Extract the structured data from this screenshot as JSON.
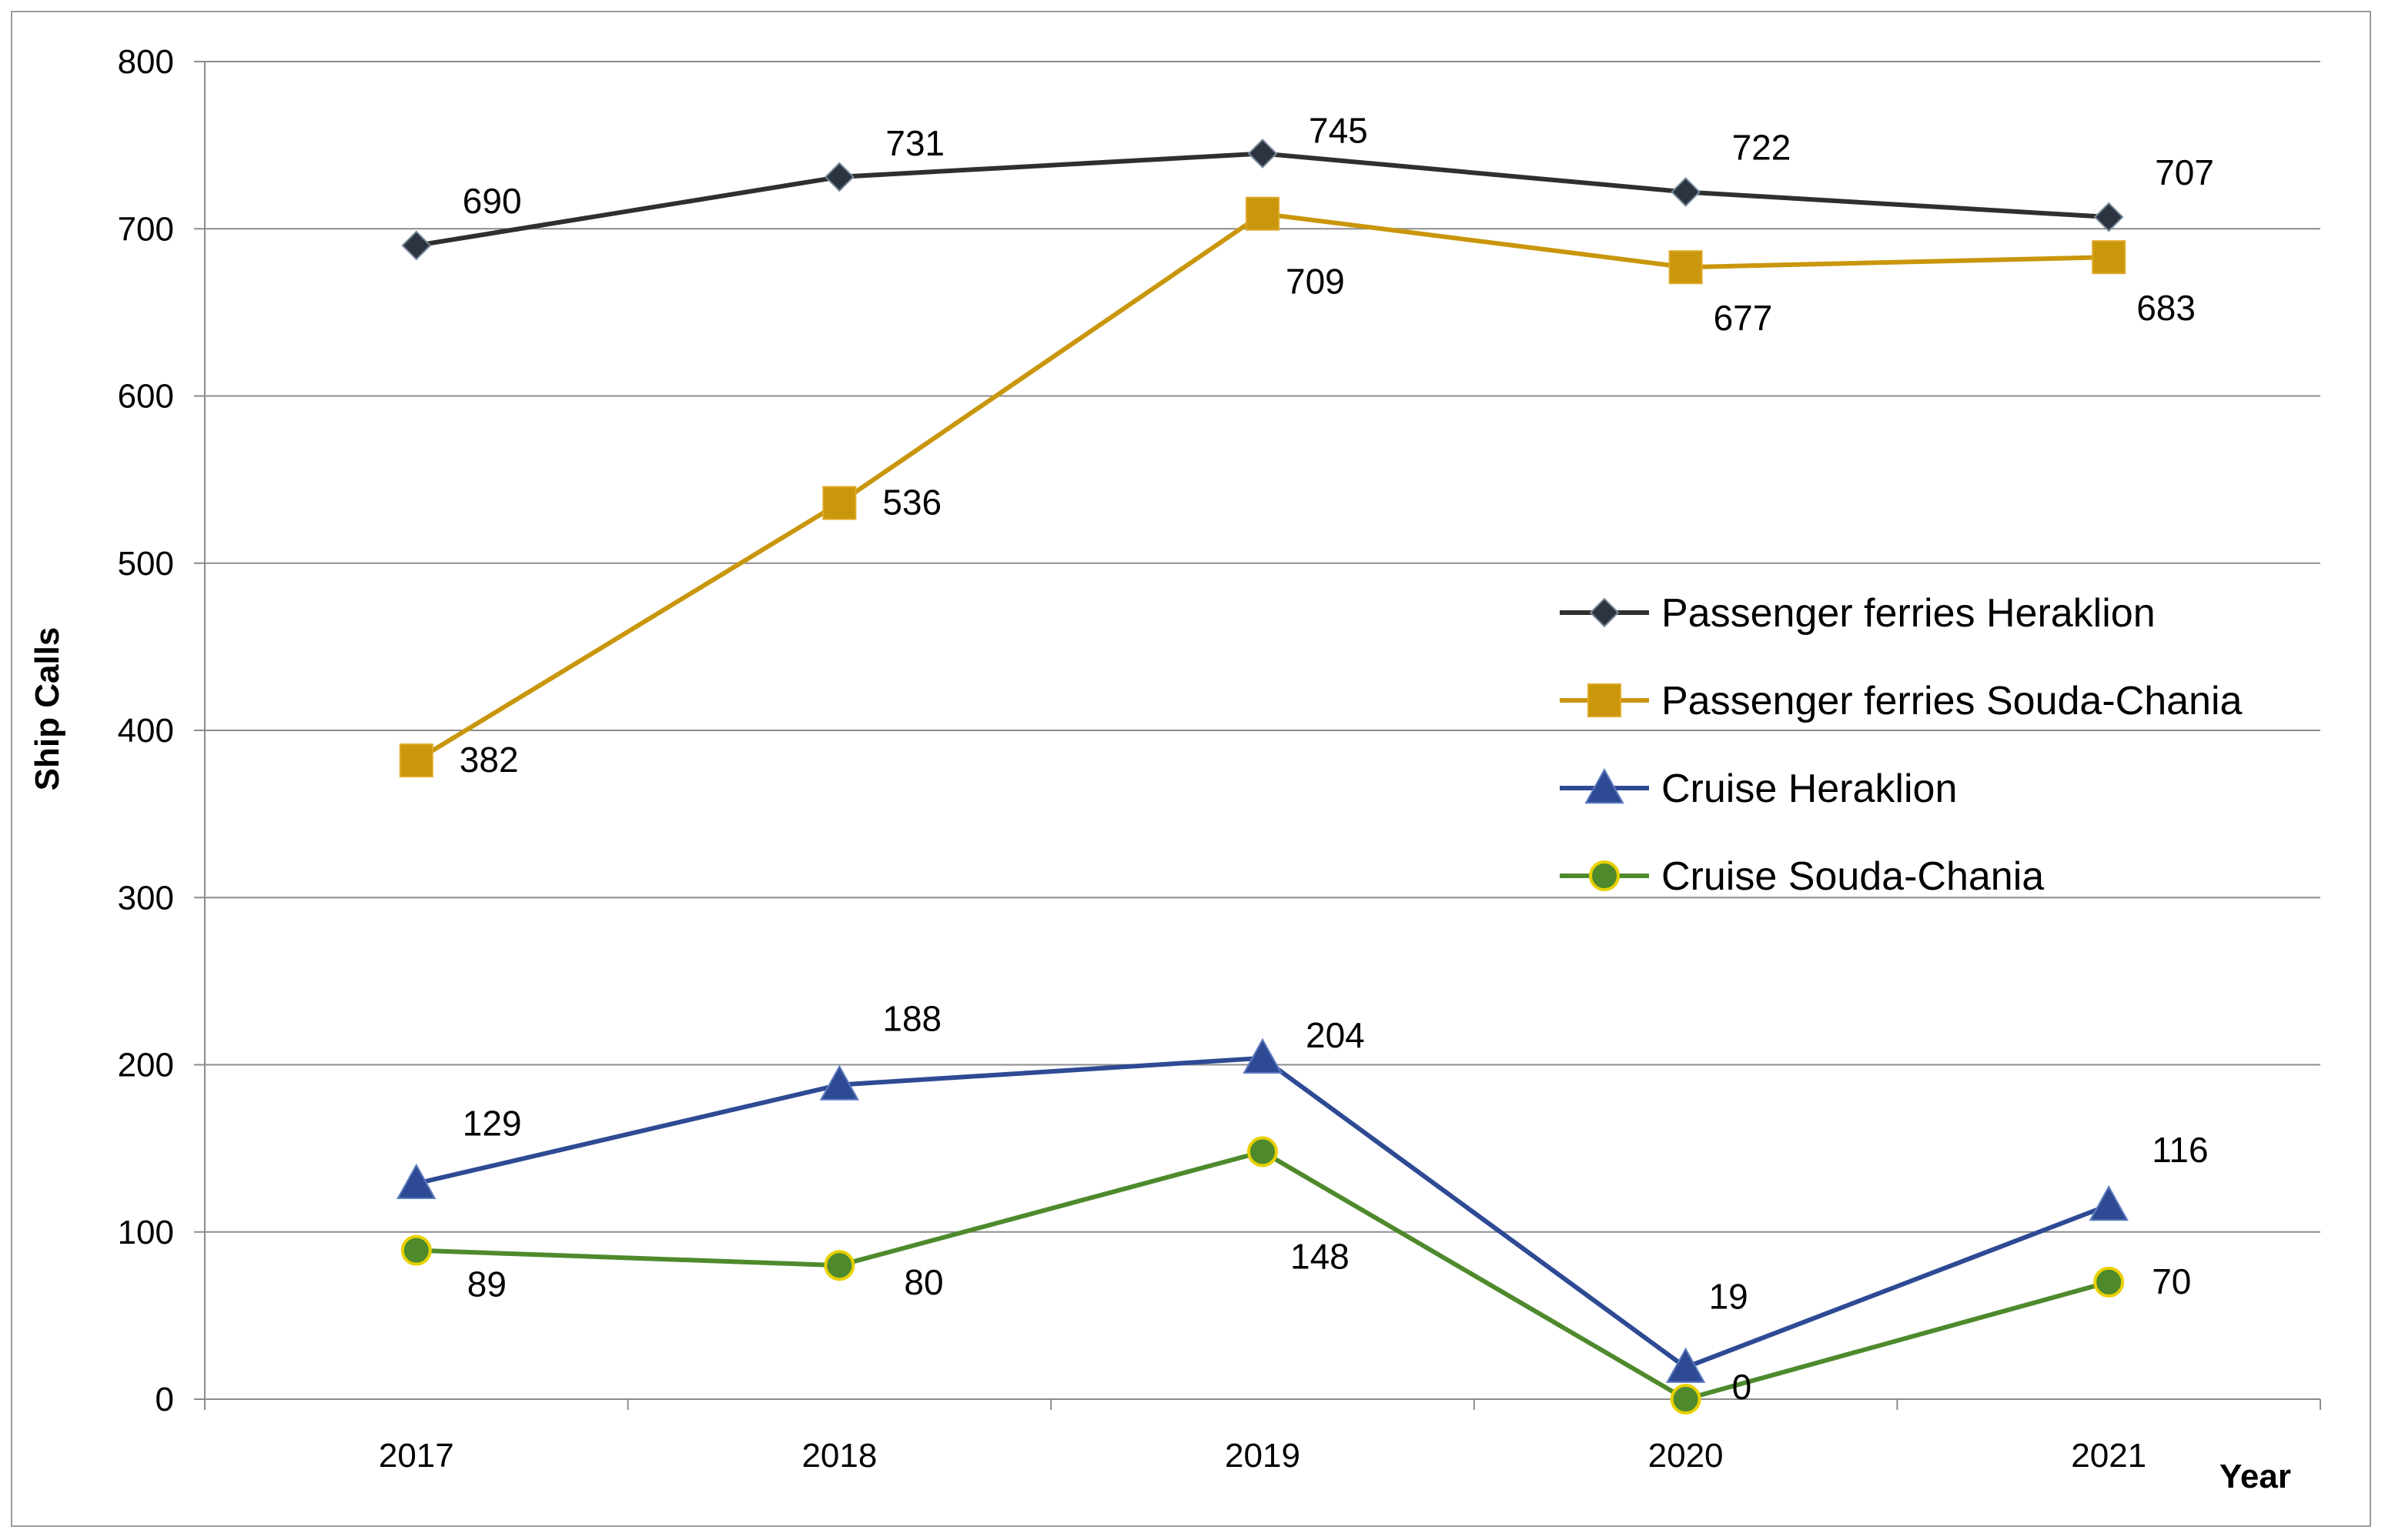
{
  "chart_data": {
    "type": "line",
    "title": "",
    "xlabel": "Year",
    "ylabel": "Ship Calls",
    "x": [
      "2017",
      "2018",
      "2019",
      "2020",
      "2021"
    ],
    "ylim": [
      0,
      800
    ],
    "yticks": [
      "0",
      "100",
      "200",
      "300",
      "400",
      "500",
      "600",
      "700",
      "800"
    ],
    "grid": "horizontal",
    "legend_position": "right-middle",
    "series": [
      {
        "name": "Passenger ferries Heraklion",
        "values": [
          690,
          731,
          745,
          722,
          707
        ],
        "labels": [
          "690",
          "731",
          "745",
          "722",
          "707"
        ],
        "color": "#2f2f2f",
        "marker": "diamond"
      },
      {
        "name": "Passenger ferries Souda-Chania",
        "values": [
          382,
          536,
          709,
          677,
          683
        ],
        "labels": [
          "382",
          "536",
          "709",
          "677",
          "683"
        ],
        "color": "#c9960c",
        "marker": "square"
      },
      {
        "name": "Cruise Heraklion",
        "values": [
          129,
          188,
          204,
          19,
          116
        ],
        "labels": [
          "129",
          "188",
          "204",
          "19",
          "116"
        ],
        "color": "#2e4a94",
        "marker": "triangle"
      },
      {
        "name": "Cruise Souda-Chania",
        "values": [
          89,
          80,
          148,
          0,
          70
        ],
        "labels": [
          "89",
          "80",
          "148",
          "0",
          "70"
        ],
        "color": "#4e8a2c",
        "marker": "circle"
      }
    ]
  }
}
